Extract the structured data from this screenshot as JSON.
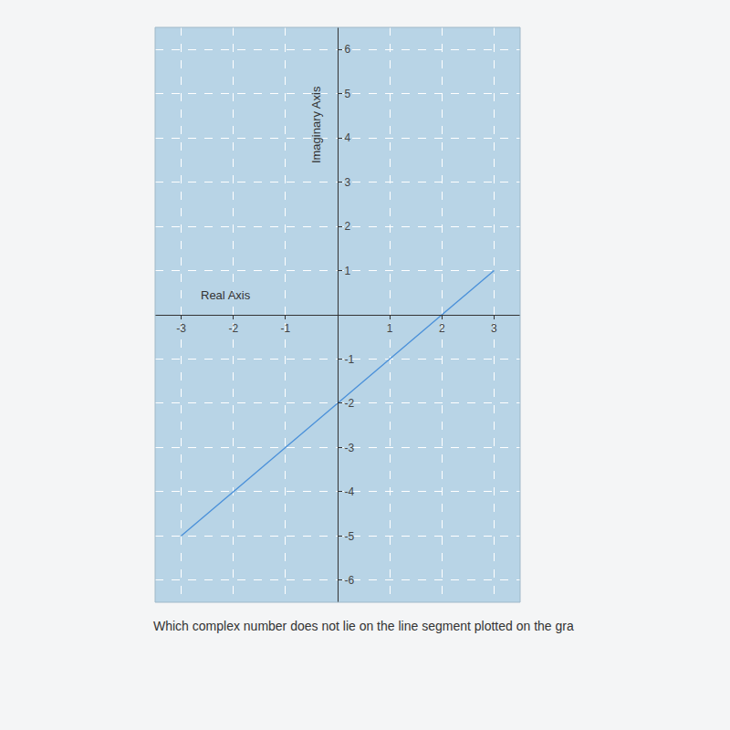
{
  "chart_data": {
    "type": "line",
    "x_label": "Real Axis",
    "y_label": "Imaginary Axis",
    "caption": "Which complex number does not lie on the line segment plotted on the gra",
    "x": [
      -3,
      3
    ],
    "values": [
      -5,
      1
    ],
    "color": "#4a90d9",
    "xlim": [
      -3.5,
      3.5
    ],
    "ylim": [
      -6.5,
      6.5
    ],
    "xticks": [
      -3,
      -2,
      -1,
      1,
      2,
      3
    ],
    "yticks": [
      -6,
      -5,
      -4,
      -3,
      -2,
      -1,
      1,
      2,
      3,
      4,
      5,
      6
    ],
    "grid": true
  }
}
